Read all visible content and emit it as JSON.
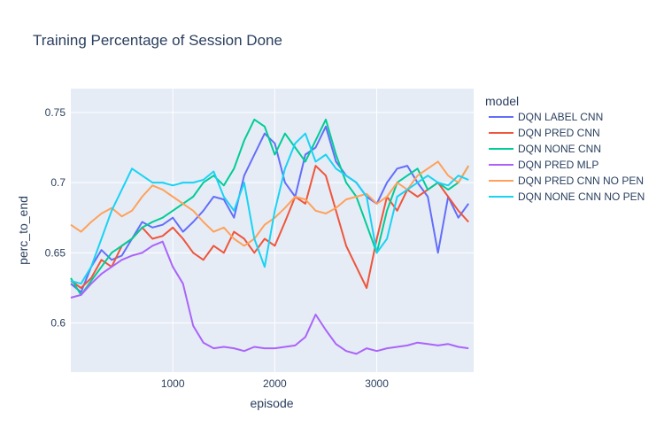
{
  "chart_data": {
    "type": "line",
    "title": "Training Percentage of Session Done",
    "xlabel": "episode",
    "ylabel": "perc_to_end",
    "legend_title": "model",
    "legend_position": "right",
    "grid": true,
    "xlim": [
      0,
      3950
    ],
    "ylim": [
      0.565,
      0.767
    ],
    "xticks": [
      1000,
      2000,
      3000
    ],
    "xtick_labels": [
      "1000",
      "2000",
      "3000"
    ],
    "yticks": [
      0.6,
      0.65,
      0.7,
      0.75
    ],
    "ytick_labels": [
      "0.6",
      "0.65",
      "0.7",
      "0.75"
    ],
    "x": [
      0,
      100,
      200,
      300,
      400,
      500,
      600,
      700,
      800,
      900,
      1000,
      1100,
      1200,
      1300,
      1400,
      1500,
      1600,
      1700,
      1800,
      1900,
      2000,
      2100,
      2200,
      2300,
      2400,
      2500,
      2600,
      2700,
      2800,
      2900,
      3000,
      3100,
      3200,
      3300,
      3400,
      3500,
      3600,
      3700,
      3800,
      3900
    ],
    "series": [
      {
        "name": "DQN LABEL CNN",
        "color": "#636efa",
        "values": [
          0.628,
          0.622,
          0.64,
          0.652,
          0.645,
          0.648,
          0.66,
          0.672,
          0.668,
          0.67,
          0.675,
          0.665,
          0.672,
          0.68,
          0.69,
          0.688,
          0.675,
          0.705,
          0.72,
          0.735,
          0.728,
          0.7,
          0.69,
          0.72,
          0.725,
          0.74,
          0.715,
          0.705,
          0.7,
          0.69,
          0.685,
          0.7,
          0.71,
          0.712,
          0.7,
          0.69,
          0.65,
          0.69,
          0.675,
          0.685
        ]
      },
      {
        "name": "DQN PRED CNN",
        "color": "#ef553b",
        "values": [
          0.63,
          0.625,
          0.632,
          0.645,
          0.64,
          0.655,
          0.66,
          0.668,
          0.66,
          0.662,
          0.668,
          0.66,
          0.65,
          0.645,
          0.655,
          0.65,
          0.665,
          0.66,
          0.65,
          0.66,
          0.655,
          0.672,
          0.69,
          0.685,
          0.712,
          0.705,
          0.68,
          0.655,
          0.64,
          0.625,
          0.66,
          0.69,
          0.68,
          0.695,
          0.69,
          0.695,
          0.7,
          0.69,
          0.68,
          0.672
        ]
      },
      {
        "name": "DQN NONE CNN",
        "color": "#00cc96",
        "values": [
          0.632,
          0.62,
          0.63,
          0.64,
          0.65,
          0.655,
          0.66,
          0.668,
          0.672,
          0.675,
          0.68,
          0.685,
          0.69,
          0.7,
          0.705,
          0.698,
          0.71,
          0.73,
          0.745,
          0.74,
          0.72,
          0.735,
          0.725,
          0.715,
          0.73,
          0.745,
          0.72,
          0.7,
          0.69,
          0.67,
          0.65,
          0.68,
          0.7,
          0.705,
          0.71,
          0.695,
          0.7,
          0.695,
          0.7,
          0.712
        ]
      },
      {
        "name": "DQN PRED MLP",
        "color": "#ab63fa",
        "values": [
          0.618,
          0.62,
          0.628,
          0.635,
          0.64,
          0.645,
          0.648,
          0.65,
          0.655,
          0.658,
          0.64,
          0.628,
          0.598,
          0.586,
          0.582,
          0.583,
          0.582,
          0.58,
          0.583,
          0.582,
          0.582,
          0.583,
          0.584,
          0.59,
          0.606,
          0.595,
          0.585,
          0.58,
          0.578,
          0.582,
          0.58,
          0.582,
          0.583,
          0.584,
          0.586,
          0.585,
          0.584,
          0.585,
          0.583,
          0.582
        ]
      },
      {
        "name": "DQN PRED CNN NO PEN",
        "color": "#ffa15a",
        "values": [
          0.67,
          0.665,
          0.672,
          0.678,
          0.682,
          0.676,
          0.68,
          0.69,
          0.698,
          0.695,
          0.69,
          0.685,
          0.68,
          0.672,
          0.665,
          0.668,
          0.66,
          0.655,
          0.66,
          0.67,
          0.675,
          0.682,
          0.69,
          0.688,
          0.68,
          0.678,
          0.682,
          0.688,
          0.69,
          0.692,
          0.685,
          0.69,
          0.7,
          0.695,
          0.705,
          0.71,
          0.715,
          0.705,
          0.7,
          0.712
        ]
      },
      {
        "name": "DQN NONE CNN NO PEN",
        "color": "#19d3f3",
        "values": [
          0.63,
          0.628,
          0.64,
          0.66,
          0.68,
          0.695,
          0.71,
          0.705,
          0.7,
          0.7,
          0.698,
          0.7,
          0.7,
          0.702,
          0.708,
          0.69,
          0.68,
          0.7,
          0.66,
          0.64,
          0.68,
          0.71,
          0.728,
          0.735,
          0.715,
          0.72,
          0.71,
          0.705,
          0.7,
          0.69,
          0.65,
          0.66,
          0.69,
          0.695,
          0.7,
          0.705,
          0.7,
          0.698,
          0.705,
          0.702
        ]
      }
    ]
  }
}
